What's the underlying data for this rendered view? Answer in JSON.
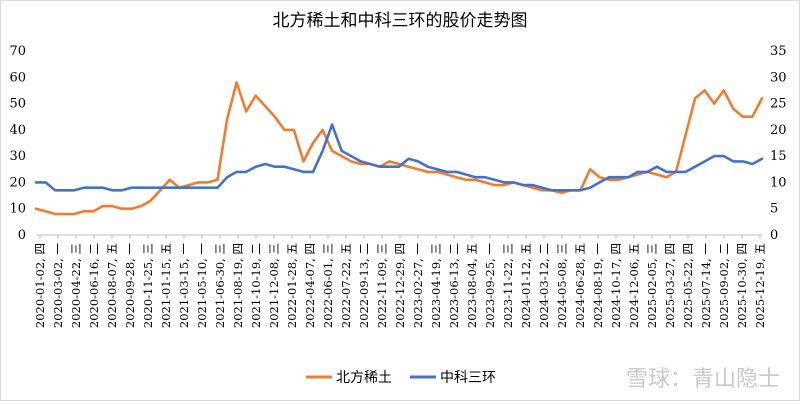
{
  "watermark": "雪球：青山隐士",
  "chart_data": {
    "type": "line",
    "title": "北方稀土和中科三环的股价走势图",
    "ylim_left": [
      0,
      70
    ],
    "yticks_left": [
      0,
      10,
      20,
      30,
      40,
      50,
      60,
      70
    ],
    "ylim_right": [
      0,
      35
    ],
    "yticks_right": [
      0,
      5,
      10,
      15,
      20,
      25,
      30,
      35
    ],
    "x_tick_labels": [
      "2020-01-02, 四",
      "2020-03-02, 一",
      "2020-04-22, 三",
      "2020-06-16, 二",
      "2020-08-07, 五",
      "2020-09-28, 一",
      "2020-11-25, 三",
      "2021-01-15, 五",
      "2021-03-15, 一",
      "2021-05-10, 一",
      "2021-06-30, 三",
      "2021-08-19, 四",
      "2021-10-19, 二",
      "2021-12-08, 三",
      "2022-01-28, 五",
      "2022-04-07, 四",
      "2022-06-01, 三",
      "2022-07-22, 五",
      "2022-09-13, 二",
      "2022-11-09, 三",
      "2022-12-29, 四",
      "2023-02-27, 一",
      "2023-04-19, 三",
      "2023-06-13, 二",
      "2023-08-04, 五",
      "2023-09-25, 一",
      "2023-11-22, 三",
      "2024-01-12, 五",
      "2024-03-12, 二",
      "2024-05-08, 三",
      "2024-06-28, 五",
      "2024-08-19, 一",
      "2024-10-17, 四",
      "2024-12-06, 五",
      "2025-02-05, 三",
      "2025-03-27, 四",
      "2025-05-22, 四",
      "2025-07-14, 一",
      "2025-09-02, 二",
      "2025-10-30, 四",
      "2025-12-19, 五"
    ],
    "grid": false,
    "legend_position": "bottom",
    "series": [
      {
        "name": "北方稀土",
        "axis": "left",
        "color": "#ed7d31",
        "values": [
          10,
          9,
          8,
          8,
          8,
          9,
          9,
          11,
          11,
          10,
          10,
          11,
          13,
          17,
          21,
          18,
          19,
          20,
          20,
          21,
          44,
          58,
          47,
          53,
          49,
          45,
          40,
          40,
          28,
          35,
          40,
          32,
          30,
          28,
          27,
          27,
          26,
          28,
          27,
          26,
          25,
          24,
          24,
          23,
          22,
          21,
          21,
          20,
          19,
          19,
          20,
          19,
          18,
          17,
          17,
          16,
          17,
          17,
          25,
          22,
          21,
          21,
          22,
          23,
          24,
          23,
          22,
          24,
          38,
          52,
          55,
          50,
          55,
          48,
          45,
          45,
          52
        ]
      },
      {
        "name": "中科三环",
        "axis": "right",
        "color": "#4472c4",
        "values": [
          10,
          10,
          8.5,
          8.5,
          8.5,
          9,
          9,
          9,
          8.5,
          8.5,
          9,
          9,
          9,
          9,
          9,
          9,
          9,
          9,
          9,
          9,
          11,
          12,
          12,
          13,
          13.5,
          13,
          13,
          12.5,
          12,
          12,
          16,
          21,
          16,
          15,
          14,
          13.5,
          13,
          13,
          13,
          14.5,
          14,
          13,
          12.5,
          12,
          12,
          11.5,
          11,
          11,
          10.5,
          10,
          10,
          9.5,
          9.5,
          9,
          8.5,
          8.5,
          8.5,
          8.5,
          9,
          10,
          11,
          11,
          11,
          12,
          12,
          13,
          12,
          12,
          12,
          13,
          14,
          15,
          15,
          14,
          14,
          13.5,
          14.5
        ]
      }
    ]
  }
}
